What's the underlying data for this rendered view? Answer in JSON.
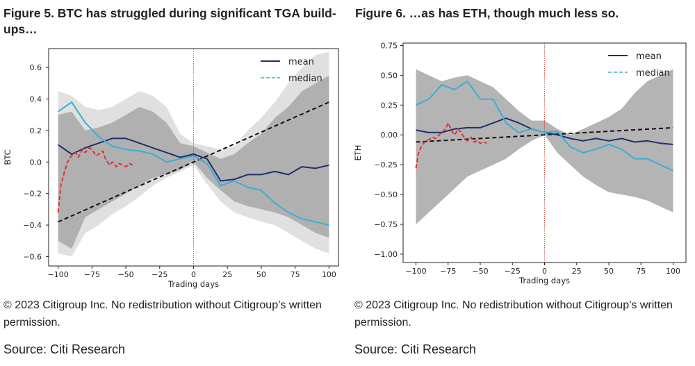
{
  "figures": [
    {
      "title": "Figure 5. BTC has struggled during significant TGA build-ups…",
      "copyright": "© 2023 Citigroup Inc. No redistribution without Citigroup’s written permission.",
      "source": "Source: Citi Research"
    },
    {
      "title": "Figure 6. …as has ETH, though much less so.",
      "copyright": "© 2023 Citigroup Inc. No redistribution without Citigroup’s written permission.",
      "source": "Source: Citi Research"
    }
  ],
  "colors": {
    "mean": "#1f2f6b",
    "median": "#3aaed8",
    "recent": "#e8302a",
    "trend": "#111111",
    "band_outer": "#e0e0e0",
    "band_inner": "#a7a7a7",
    "zero_line": "#c0392b"
  },
  "chart_data": [
    {
      "type": "line",
      "ylabel": "BTC",
      "xlabel": "Trading days",
      "xlim": [
        -107,
        107
      ],
      "ylim": [
        -0.66,
        0.72
      ],
      "xticks": [
        "−100",
        "−75",
        "−50",
        "−25",
        "0",
        "25",
        "50",
        "75",
        "100"
      ],
      "yticks": [
        "−0.6",
        "−0.4",
        "−0.2",
        "0.0",
        "0.2",
        "0.4",
        "0.6"
      ],
      "legend_position": "top-right",
      "x": [
        -100,
        -90,
        -80,
        -70,
        -60,
        -50,
        -40,
        -30,
        -20,
        -10,
        0,
        10,
        20,
        30,
        40,
        50,
        60,
        70,
        80,
        90,
        100
      ],
      "series": [
        {
          "name": "mean",
          "style": "solid",
          "values": [
            0.11,
            0.05,
            0.09,
            0.12,
            0.15,
            0.15,
            0.12,
            0.09,
            0.06,
            0.03,
            0.05,
            0.02,
            -0.12,
            -0.11,
            -0.08,
            -0.08,
            -0.06,
            -0.08,
            -0.03,
            -0.04,
            -0.02
          ]
        },
        {
          "name": "median",
          "style": "dashed",
          "values": [
            0.32,
            0.38,
            0.25,
            0.16,
            0.1,
            0.08,
            0.07,
            0.05,
            0.0,
            0.02,
            0.04,
            -0.01,
            -0.15,
            -0.12,
            -0.16,
            -0.18,
            -0.26,
            -0.32,
            -0.36,
            -0.38,
            -0.4
          ]
        },
        {
          "x": [
            -100,
            -98,
            -95,
            -92,
            -90,
            -87,
            -85,
            -82,
            -80,
            -77,
            -75,
            -72,
            -70,
            -67,
            -65,
            -62,
            -60,
            -57,
            -55,
            -52,
            -50,
            -47,
            -45
          ],
          "values": [
            -0.32,
            -0.15,
            -0.05,
            0.02,
            0.04,
            0.06,
            0.03,
            0.08,
            0.06,
            0.09,
            0.08,
            0.04,
            0.05,
            0.07,
            0.02,
            -0.02,
            0.0,
            -0.03,
            -0.01,
            -0.02,
            -0.03,
            -0.01,
            -0.02
          ]
        }
      ],
      "trend": {
        "x": [
          -100,
          100
        ],
        "values": [
          -0.38,
          0.38
        ]
      },
      "band_inner_upper": [
        0.3,
        0.32,
        0.2,
        0.22,
        0.25,
        0.3,
        0.35,
        0.32,
        0.25,
        0.12,
        0.1,
        0.06,
        0.02,
        0.05,
        0.12,
        0.18,
        0.28,
        0.35,
        0.45,
        0.5,
        0.55
      ],
      "band_inner_lower": [
        -0.5,
        -0.55,
        -0.35,
        -0.3,
        -0.25,
        -0.2,
        -0.15,
        -0.1,
        -0.08,
        -0.05,
        0.0,
        -0.1,
        -0.18,
        -0.25,
        -0.28,
        -0.3,
        -0.32,
        -0.35,
        -0.4,
        -0.45,
        -0.48
      ],
      "band_outer_upper": [
        0.45,
        0.42,
        0.35,
        0.33,
        0.35,
        0.4,
        0.45,
        0.42,
        0.35,
        0.18,
        0.12,
        0.1,
        0.08,
        0.1,
        0.2,
        0.28,
        0.38,
        0.5,
        0.6,
        0.68,
        0.7
      ],
      "band_outer_lower": [
        -0.58,
        -0.6,
        -0.45,
        -0.4,
        -0.33,
        -0.28,
        -0.22,
        -0.15,
        -0.1,
        -0.06,
        -0.02,
        -0.14,
        -0.25,
        -0.32,
        -0.35,
        -0.38,
        -0.4,
        -0.45,
        -0.5,
        -0.55,
        -0.58
      ]
    },
    {
      "type": "line",
      "ylabel": "ETH",
      "xlabel": "Trading days",
      "xlim": [
        -110,
        110
      ],
      "ylim": [
        -1.07,
        0.77
      ],
      "xticks": [
        "−100",
        "−75",
        "−50",
        "−25",
        "0",
        "25",
        "50",
        "75",
        "100"
      ],
      "yticks": [
        "−1.00",
        "−0.75",
        "−0.50",
        "−0.25",
        "0.00",
        "0.25",
        "0.50",
        "0.75"
      ],
      "legend_position": "top-right",
      "x": [
        -100,
        -90,
        -80,
        -70,
        -60,
        -50,
        -40,
        -30,
        -20,
        -10,
        0,
        10,
        20,
        30,
        40,
        50,
        60,
        70,
        80,
        90,
        100
      ],
      "series": [
        {
          "name": "mean",
          "style": "solid",
          "values": [
            0.04,
            0.02,
            0.02,
            0.05,
            0.06,
            0.06,
            0.1,
            0.14,
            0.1,
            0.05,
            0.02,
            0.0,
            -0.03,
            -0.05,
            -0.03,
            -0.05,
            -0.03,
            -0.06,
            -0.05,
            -0.07,
            -0.08
          ]
        },
        {
          "name": "median",
          "style": "dashed",
          "values": [
            0.25,
            0.3,
            0.42,
            0.38,
            0.45,
            0.3,
            0.3,
            0.1,
            0.02,
            0.05,
            0.02,
            0.03,
            -0.1,
            -0.15,
            -0.12,
            -0.08,
            -0.12,
            -0.2,
            -0.2,
            -0.25,
            -0.3
          ]
        },
        {
          "x": [
            -100,
            -98,
            -95,
            -92,
            -90,
            -87,
            -85,
            -82,
            -80,
            -77,
            -75,
            -72,
            -70,
            -67,
            -65,
            -62,
            -60,
            -57,
            -55,
            -52,
            -50,
            -47,
            -45
          ],
          "values": [
            -0.28,
            -0.15,
            -0.08,
            -0.05,
            -0.04,
            -0.02,
            -0.03,
            0.0,
            0.02,
            0.05,
            0.1,
            0.03,
            0.0,
            0.05,
            0.02,
            -0.03,
            -0.05,
            -0.02,
            -0.06,
            -0.05,
            -0.07,
            -0.06,
            -0.07
          ]
        }
      ],
      "trend": {
        "x": [
          -100,
          100
        ],
        "values": [
          -0.06,
          0.06
        ]
      },
      "band_inner_upper": [
        0.55,
        0.5,
        0.45,
        0.48,
        0.5,
        0.45,
        0.4,
        0.3,
        0.2,
        0.12,
        0.12,
        0.05,
        0.0,
        0.05,
        0.1,
        0.15,
        0.22,
        0.35,
        0.45,
        0.5,
        0.55
      ],
      "band_inner_lower": [
        -0.75,
        -0.65,
        -0.55,
        -0.45,
        -0.35,
        -0.3,
        -0.25,
        -0.2,
        -0.12,
        -0.05,
        0.0,
        -0.15,
        -0.25,
        -0.35,
        -0.42,
        -0.48,
        -0.5,
        -0.52,
        -0.55,
        -0.6,
        -0.65
      ]
    }
  ]
}
